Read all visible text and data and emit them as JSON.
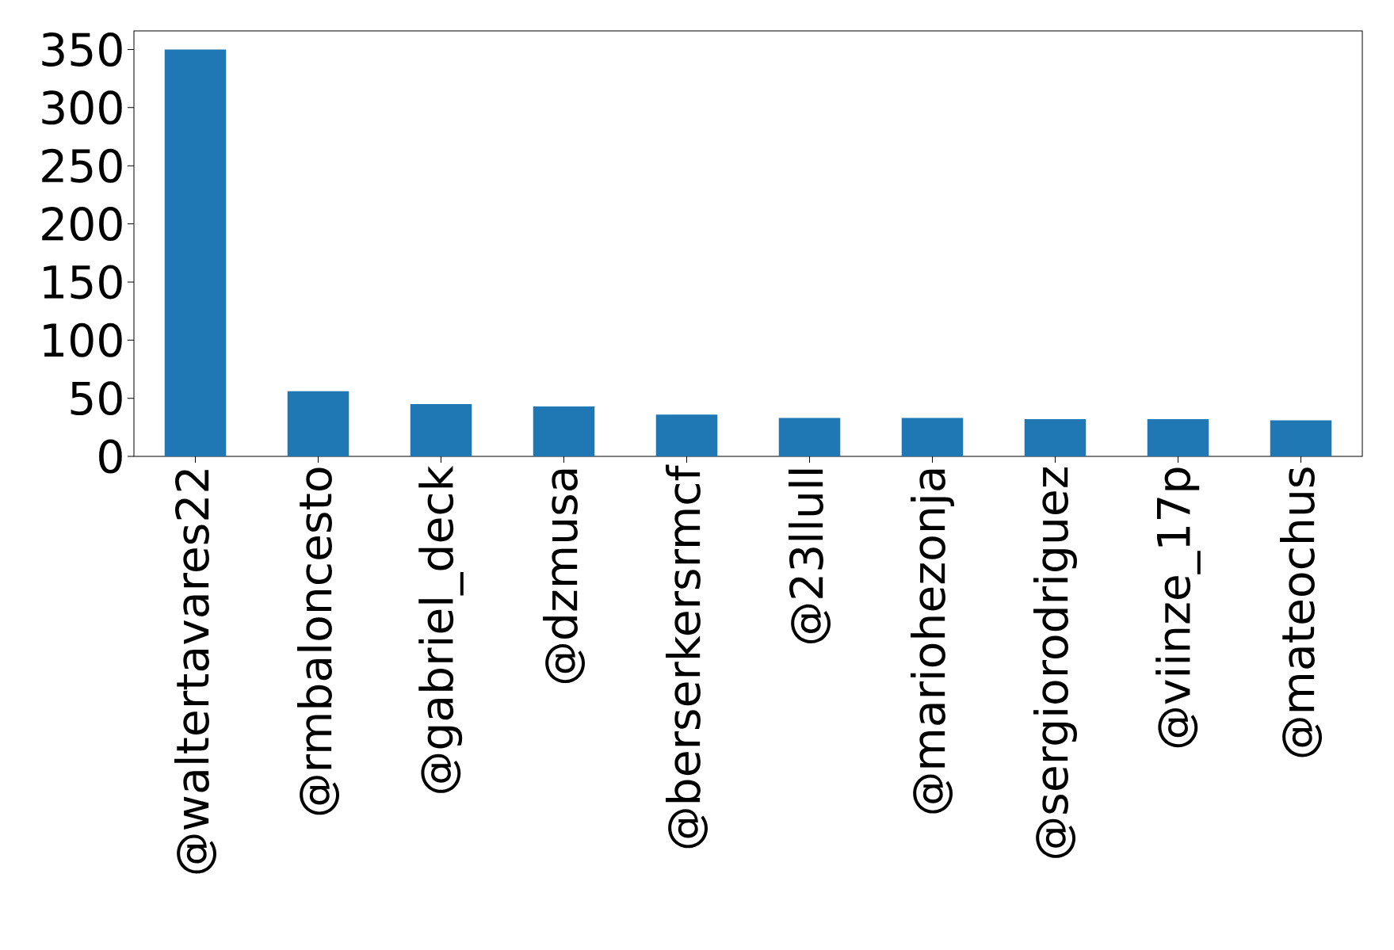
{
  "chart_data": {
    "type": "bar",
    "categories": [
      "@waltertavares22",
      "@rmbaloncesto",
      "@gabriel_deck",
      "@dzmusa",
      "@berserkersrmcf",
      "@23llull",
      "@mariohezonja",
      "@sergiorodriguez",
      "@viinze_17p",
      "@mateochus"
    ],
    "values": [
      350,
      56,
      45,
      43,
      36,
      33,
      33,
      32,
      32,
      31
    ],
    "color": "#1f77b4",
    "ylim": [
      0,
      366
    ],
    "yticks": [
      0,
      50,
      100,
      150,
      200,
      250,
      300,
      350
    ]
  }
}
